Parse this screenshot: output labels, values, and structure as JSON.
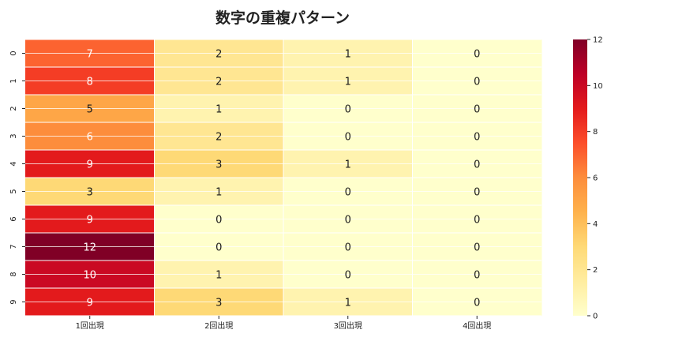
{
  "chart_data": {
    "type": "heatmap",
    "title": "数字の重複パターン",
    "x_labels": [
      "1回出現",
      "2回出現",
      "3回出現",
      "4回出現"
    ],
    "y_labels": [
      "0",
      "1",
      "2",
      "3",
      "4",
      "5",
      "6",
      "7",
      "8",
      "9"
    ],
    "values": [
      [
        7,
        2,
        1,
        0
      ],
      [
        8,
        2,
        1,
        0
      ],
      [
        5,
        1,
        0,
        0
      ],
      [
        6,
        2,
        0,
        0
      ],
      [
        9,
        3,
        1,
        0
      ],
      [
        3,
        1,
        0,
        0
      ],
      [
        9,
        0,
        0,
        0
      ],
      [
        12,
        0,
        0,
        0
      ],
      [
        10,
        1,
        0,
        0
      ],
      [
        9,
        3,
        1,
        0
      ]
    ],
    "colorbar": {
      "min": 0,
      "max": 12,
      "ticks": [
        "0",
        "2",
        "4",
        "6",
        "8",
        "10",
        "12"
      ],
      "colormap": "YlOrRd"
    },
    "grid": true,
    "annotations": true
  },
  "colors": {
    "gradient": [
      "#ffffcc",
      "#ffeda0",
      "#fed976",
      "#feb24c",
      "#fd8d3c",
      "#fc4e2a",
      "#e31a1c",
      "#bd0026",
      "#800026"
    ],
    "grid_line": "#ffffff"
  }
}
